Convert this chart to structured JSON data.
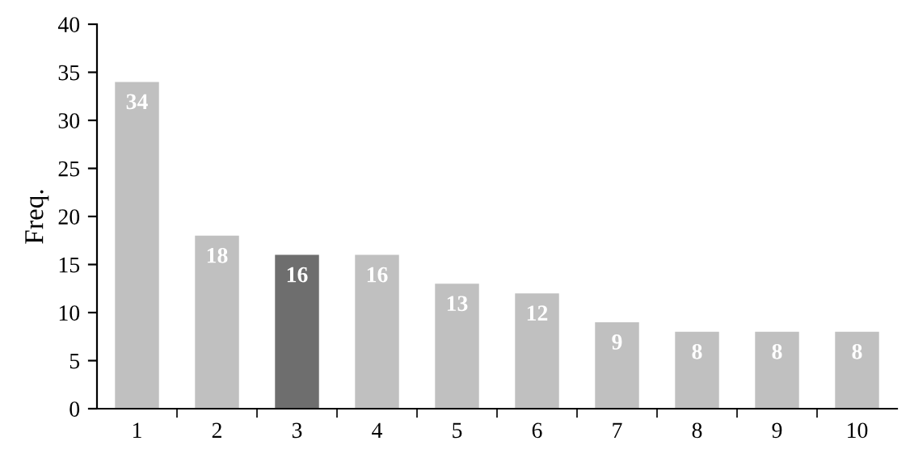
{
  "chart_data": {
    "type": "bar",
    "ylabel": "Freq.",
    "categories": [
      "1",
      "2",
      "3",
      "4",
      "5",
      "6",
      "7",
      "8",
      "9",
      "10"
    ],
    "values": [
      34,
      18,
      16,
      16,
      13,
      12,
      9,
      8,
      8,
      8
    ],
    "colors": [
      "#c0c0c0",
      "#c0c0c0",
      "#6e6e6e",
      "#c0c0c0",
      "#c0c0c0",
      "#c0c0c0",
      "#c0c0c0",
      "#c0c0c0",
      "#c0c0c0",
      "#c0c0c0"
    ],
    "ylim": [
      0,
      40
    ],
    "yticks": [
      0,
      5,
      10,
      15,
      20,
      25,
      30,
      35,
      40
    ],
    "grid": false,
    "data_labels": true
  }
}
